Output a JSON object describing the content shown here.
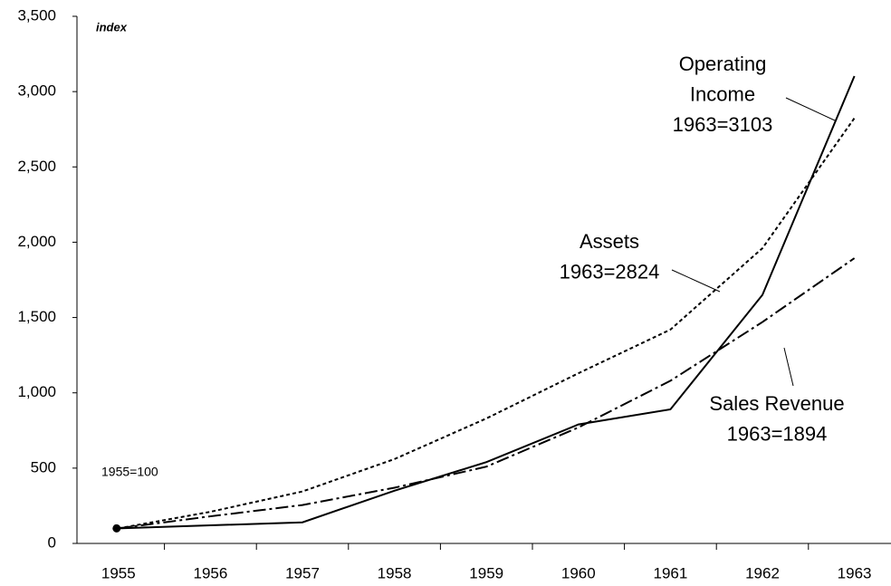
{
  "chart_data": {
    "type": "line",
    "categories": [
      "1955",
      "1956",
      "1957",
      "1958",
      "1959",
      "1960",
      "1961",
      "1962",
      "1963"
    ],
    "series": [
      {
        "name": "Operating Income",
        "color": "#000000",
        "style": "solid",
        "values": [
          100,
          120,
          140,
          350,
          540,
          790,
          890,
          1650,
          3103
        ]
      },
      {
        "name": "Assets",
        "color": "#000000",
        "style": "dotted",
        "values": [
          100,
          210,
          345,
          560,
          830,
          1130,
          1420,
          1960,
          2824
        ]
      },
      {
        "name": "Sales Revenue",
        "color": "#000000",
        "style": "dashdot",
        "values": [
          100,
          180,
          255,
          370,
          510,
          770,
          1080,
          1470,
          1894
        ]
      }
    ],
    "ylim": [
      0,
      3500
    ],
    "yticks": [
      0,
      500,
      {
        "value": 1000,
        "label": "1,000"
      },
      {
        "value": 1500,
        "label": "1,500"
      },
      {
        "value": 2000,
        "label": "2,000"
      },
      {
        "value": 2500,
        "label": "2,500"
      },
      {
        "value": 3000,
        "label": "3,000"
      },
      {
        "value": 3500,
        "label": "3,500"
      }
    ],
    "y_axis_label": "index",
    "base_note": "1955=100",
    "annotations": [
      {
        "lines": [
          "Operating",
          "Income",
          "1963=3103"
        ]
      },
      {
        "lines": [
          "Assets",
          "1963=2824"
        ]
      },
      {
        "lines": [
          "Sales Revenue",
          "1963=1894"
        ]
      }
    ],
    "grid": false
  }
}
